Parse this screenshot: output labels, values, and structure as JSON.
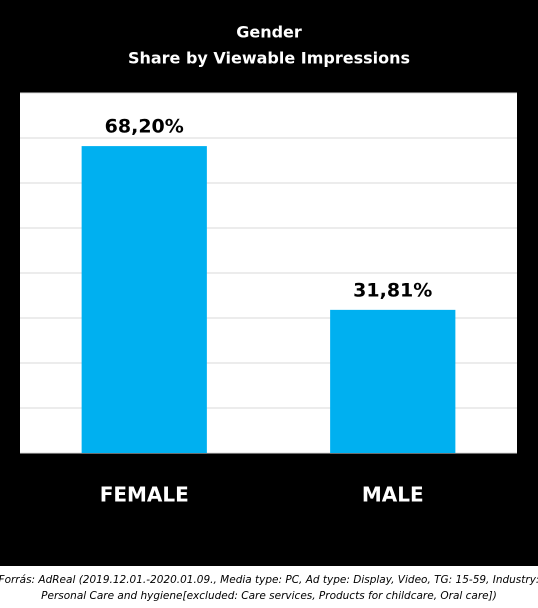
{
  "chart_data": {
    "type": "bar",
    "title": [
      "Gender",
      "Share by Viewable Impressions"
    ],
    "categories": [
      "FEMALE",
      "MALE"
    ],
    "values": [
      68.2,
      31.81
    ],
    "value_labels": [
      "68,20%",
      "31,81%"
    ],
    "color": "#00b0f0",
    "ylim": [
      0,
      80
    ],
    "yticks": [
      0,
      10,
      20,
      30,
      40,
      50,
      60,
      70,
      80
    ],
    "grid": true,
    "footnote": [
      "Forrás: AdReal (2019.12.01.-2020.01.09., Media type: PC, Ad type: Display, Video, TG: 15-59, Industry:",
      "Personal Care and hygiene[excluded: Care services, Products for childcare, Oral care])"
    ]
  }
}
